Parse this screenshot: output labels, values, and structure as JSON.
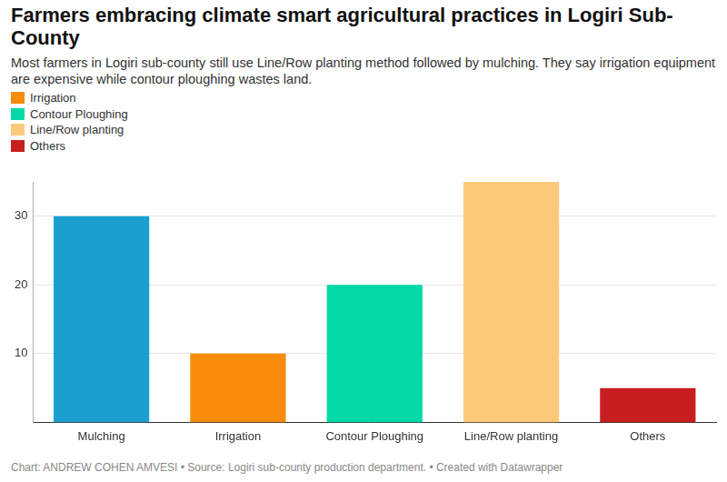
{
  "chart_data": {
    "type": "bar",
    "title": "Farmers embracing climate smart agricultural practices in Logiri Sub-County",
    "subtitle": "Most farmers in Logiri sub-county still use Line/Row planting method followed by mulching. They say irrigation equipment are expensive while contour ploughing wastes land.",
    "categories": [
      "Mulching",
      "Irrigation",
      "Contour Ploughing",
      "Line/Row planting",
      "Others"
    ],
    "values": [
      30,
      10,
      20,
      35,
      5
    ],
    "colors": [
      "#1a9fce",
      "#f78c0a",
      "#03d9a7",
      "#fdca7b",
      "#c81e1f"
    ],
    "legend": "top-left",
    "legend_entries": [
      "Irrigation",
      "Contour Ploughing",
      "Line/Row planting",
      "Others"
    ],
    "ylim": [
      0,
      35
    ],
    "yticks": [
      10,
      20,
      30
    ],
    "grid": true,
    "footer": "Chart: ANDREW COHEN AMVESI • Source: Logiri sub-county production department. • Created with Datawrapper"
  }
}
